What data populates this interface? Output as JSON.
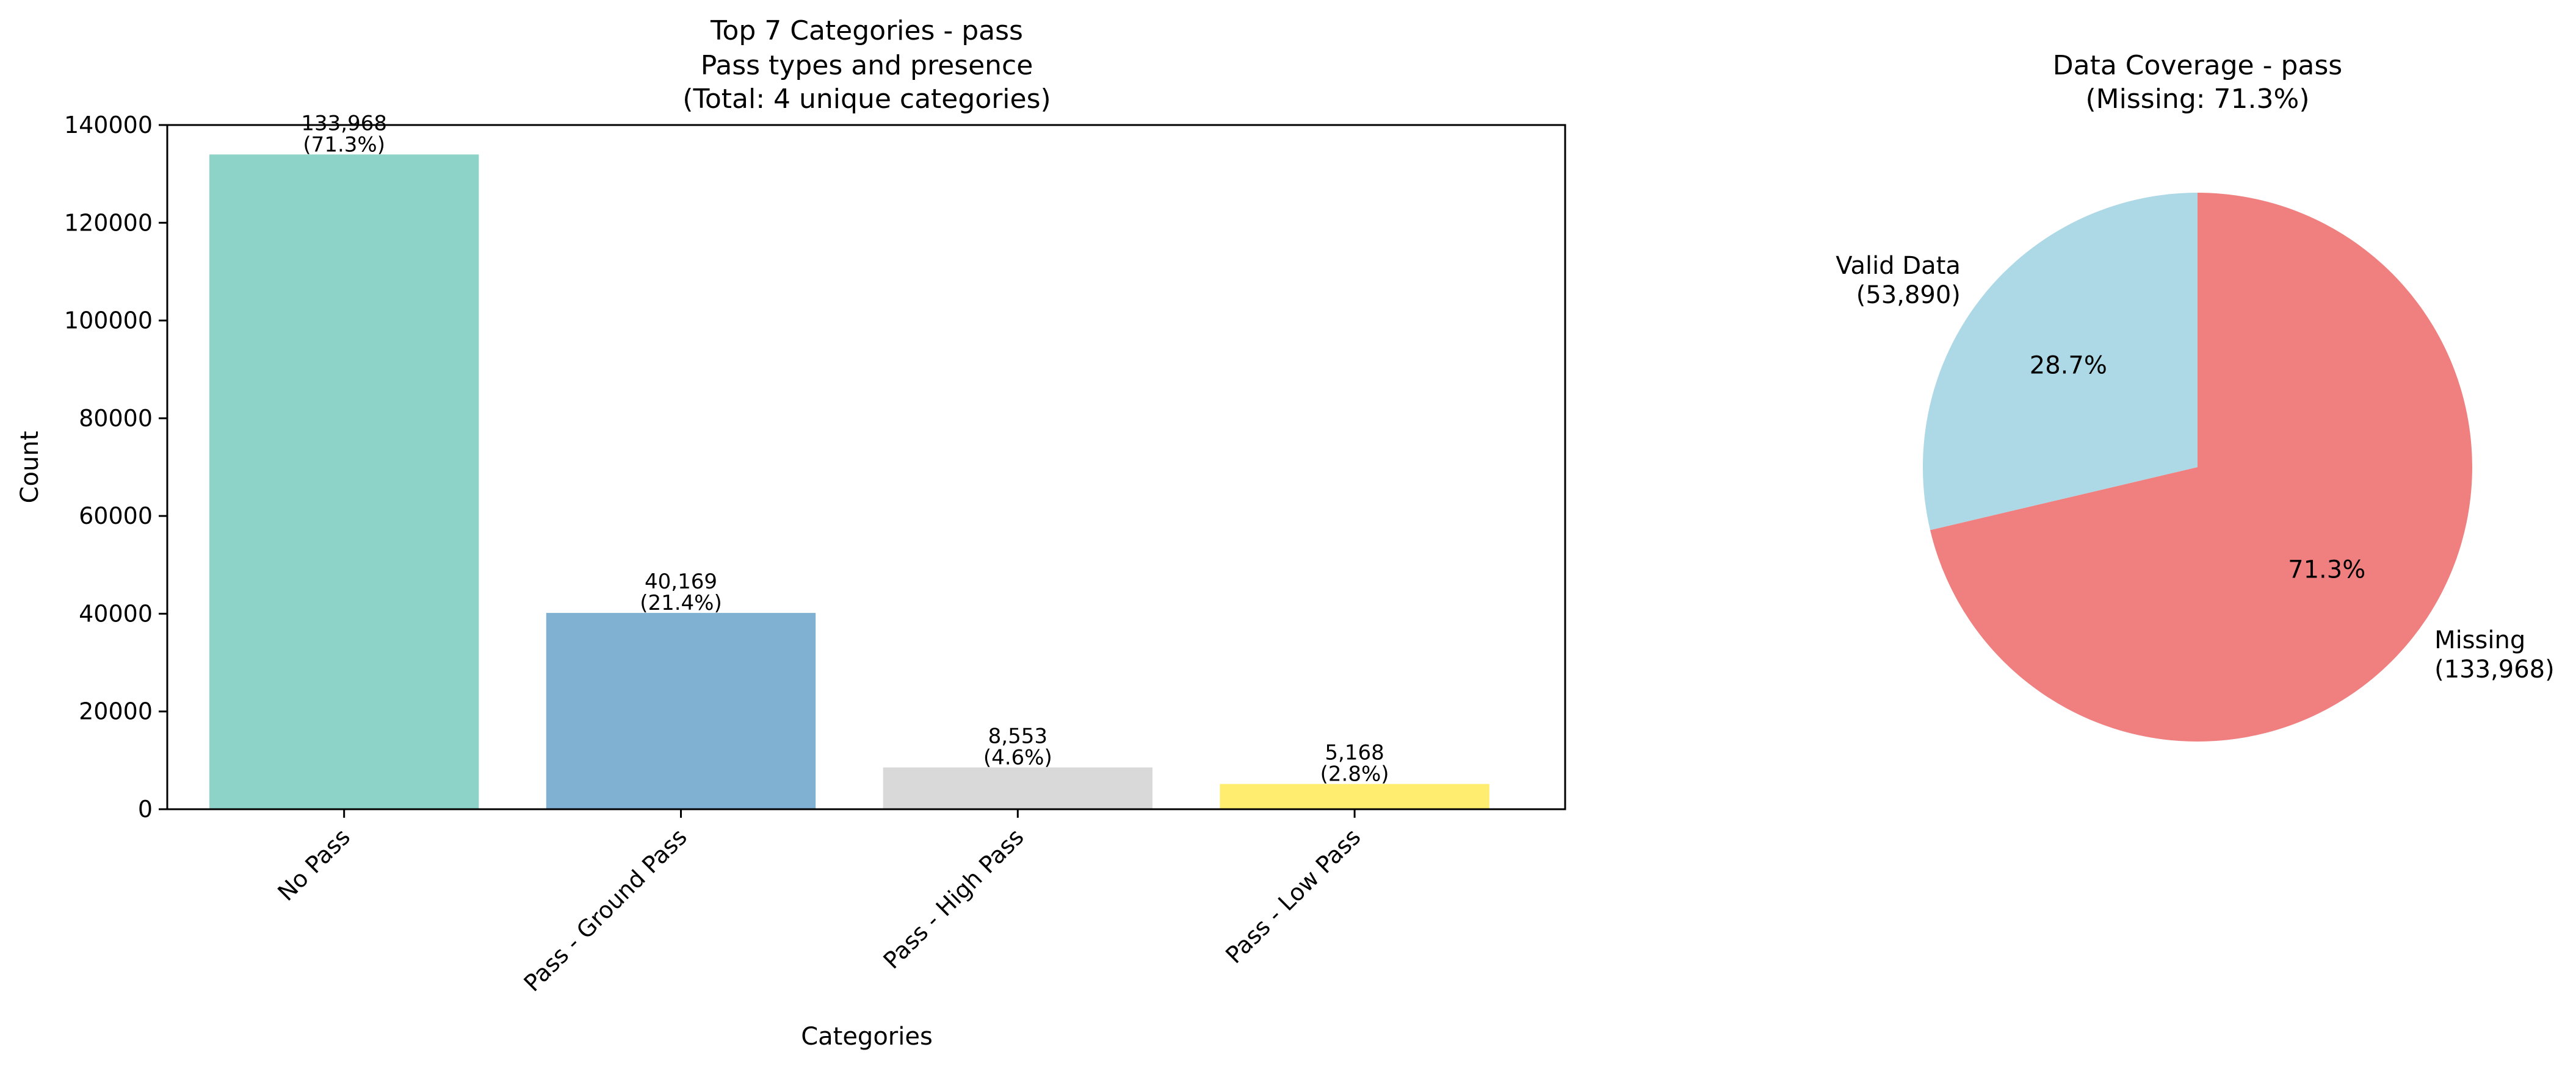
{
  "chart_data": [
    {
      "type": "bar",
      "title_lines": [
        "Top 7 Categories - pass",
        "Pass types and presence",
        "(Total: 4 unique categories)"
      ],
      "xlabel": "Categories",
      "ylabel": "Count",
      "categories": [
        "No Pass",
        "Pass - Ground Pass",
        "Pass - High Pass",
        "Pass - Low Pass"
      ],
      "values": [
        133968,
        40169,
        8553,
        5168
      ],
      "value_labels": [
        "133,968",
        "40,169",
        "8,553",
        "5,168"
      ],
      "percent_labels": [
        "(71.3%)",
        "(21.4%)",
        "(4.6%)",
        "(2.8%)"
      ],
      "colors": [
        "#8ed3c7",
        "#80b1d3",
        "#d9d9d9",
        "#ffed6f"
      ],
      "ylim": [
        0,
        140000
      ],
      "yticks": [
        0,
        20000,
        40000,
        60000,
        80000,
        100000,
        120000,
        140000
      ],
      "ytick_labels": [
        "0",
        "20000",
        "40000",
        "60000",
        "80000",
        "100000",
        "120000",
        "140000"
      ],
      "grid": false,
      "legend": "none"
    },
    {
      "type": "pie",
      "title_lines": [
        "Data Coverage - pass",
        "(Missing: 71.3%)"
      ],
      "slices": [
        {
          "label_lines": [
            "Missing",
            "(133,968)"
          ],
          "value": 133968,
          "pct": "71.3%",
          "color": "#f08080"
        },
        {
          "label_lines": [
            "Valid Data",
            "(53,890)"
          ],
          "value": 53890,
          "pct": "28.7%",
          "color": "#add8e6"
        }
      ],
      "start": "top, clockwise",
      "legend": "none"
    }
  ]
}
